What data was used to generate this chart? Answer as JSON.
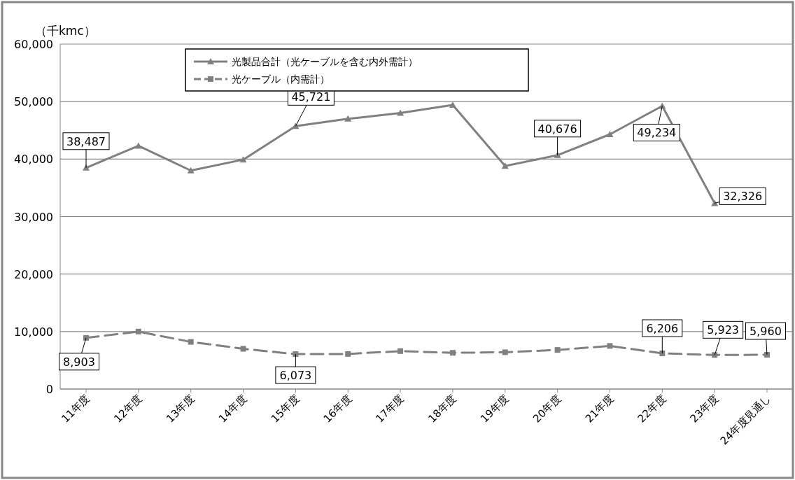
{
  "chart_data": {
    "type": "line",
    "ylabel": "（千kmc）",
    "categories": [
      "11年度",
      "12年度",
      "13年度",
      "14年度",
      "15年度",
      "16年度",
      "17年度",
      "18年度",
      "19年度",
      "20年度",
      "21年度",
      "22年度",
      "23年度",
      "24年度見通し"
    ],
    "series": [
      {
        "name": "光製品合計（光ケーブルを含む内外需計）",
        "color": "#808080",
        "marker": "triangle",
        "line_style": "solid",
        "values": [
          38487,
          42300,
          38000,
          39900,
          45721,
          47000,
          48000,
          49400,
          38800,
          40676,
          44300,
          49234,
          32326,
          null
        ],
        "value_labels": [
          "38,487",
          null,
          null,
          null,
          "45,721",
          null,
          null,
          null,
          null,
          "40,676",
          null,
          "49,234",
          "32,326",
          null
        ]
      },
      {
        "name": "光ケーブル（内需計）",
        "color": "#808080",
        "marker": "square",
        "line_style": "dashed",
        "values": [
          8903,
          10000,
          8200,
          7000,
          6073,
          6100,
          6600,
          6300,
          6400,
          6800,
          7500,
          6206,
          5923,
          5960
        ],
        "value_labels": [
          "8,903",
          null,
          null,
          null,
          "6,073",
          null,
          null,
          null,
          null,
          null,
          null,
          "6,206",
          "5,923",
          "5,960"
        ]
      }
    ],
    "ylim": [
      0,
      60000
    ],
    "yticks": [
      {
        "value": 0,
        "label": "0"
      },
      {
        "value": 10000,
        "label": "10,000"
      },
      {
        "value": 20000,
        "label": "20,000"
      },
      {
        "value": 30000,
        "label": "30,000"
      },
      {
        "value": 40000,
        "label": "40,000"
      },
      {
        "value": 50000,
        "label": "50,000"
      },
      {
        "value": 60000,
        "label": "60,000"
      }
    ],
    "grid": "y",
    "legend": "top left"
  }
}
